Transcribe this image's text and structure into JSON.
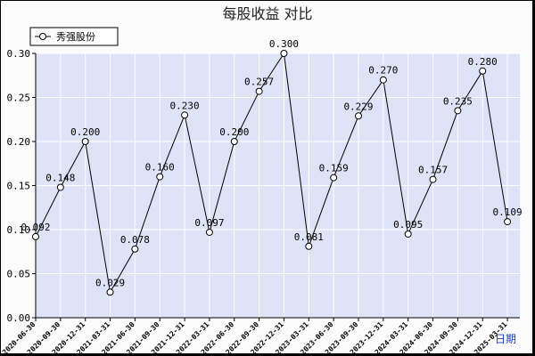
{
  "chart_data": {
    "type": "line",
    "title": "每股收益 对比",
    "x_unit_label": "日期",
    "ylim": [
      0,
      0.3
    ],
    "yticks": [
      "0.00",
      "0.05",
      "0.10",
      "0.15",
      "0.20",
      "0.25",
      "0.30"
    ],
    "grid": true,
    "legend_position": "top-left",
    "colors": {
      "plot_bg": "#dfe3f7",
      "line": "#000000",
      "grid": "#ffffff"
    },
    "categories": [
      "2020-06-30",
      "2020-09-30",
      "2020-12-31",
      "2021-03-31",
      "2021-06-30",
      "2021-09-30",
      "2021-12-31",
      "2022-03-31",
      "2022-06-30",
      "2022-09-30",
      "2022-12-31",
      "2023-03-31",
      "2023-06-30",
      "2023-09-30",
      "2023-12-31",
      "2024-03-31",
      "2024-06-30",
      "2024-09-30",
      "2024-12-31",
      "2025-03-31"
    ],
    "series": [
      {
        "name": "秀强股份",
        "values": [
          0.092,
          0.148,
          0.2,
          0.029,
          0.078,
          0.16,
          0.23,
          0.097,
          0.2,
          0.257,
          0.3,
          0.081,
          0.159,
          0.229,
          0.27,
          0.095,
          0.157,
          0.235,
          0.28,
          0.109
        ],
        "labels": [
          "0.092",
          "0.148",
          "0.200",
          "0.029",
          "0.078",
          "0.160",
          "0.230",
          "0.097",
          "0.200",
          "0.257",
          "0.300",
          "0.081",
          "0.159",
          "0.229",
          "0.270",
          "0.095",
          "0.157",
          "0.235",
          "0.280",
          "0.109"
        ]
      }
    ]
  }
}
